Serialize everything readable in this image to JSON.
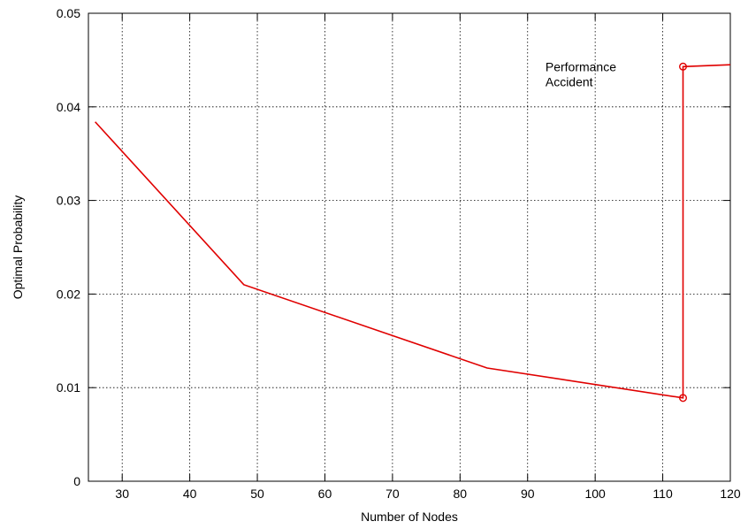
{
  "chart_data": {
    "type": "line",
    "title": "",
    "xlabel": "Number of Nodes",
    "ylabel": "Optimal Probability",
    "xlim": [
      25,
      120
    ],
    "ylim": [
      0,
      0.05
    ],
    "xticks": [
      30,
      40,
      50,
      60,
      70,
      80,
      90,
      100,
      110,
      120
    ],
    "xtick_labels": [
      "30",
      "40",
      "50",
      "60",
      "70",
      "80",
      "90",
      "100",
      "110",
      "120"
    ],
    "yticks": [
      0,
      0.01,
      0.02,
      0.03,
      0.04,
      0.05
    ],
    "ytick_labels": [
      "0",
      "0.01",
      "0.02",
      "0.03",
      "0.04",
      "0.05"
    ],
    "grid": true,
    "series": [
      {
        "color": "#e00000",
        "x": [
          26,
          48,
          84,
          113,
          113,
          120
        ],
        "y": [
          0.0384,
          0.021,
          0.0121,
          0.0089,
          0.0443,
          0.0445
        ]
      }
    ],
    "markers": [
      {
        "x": 113,
        "y": 0.0089
      },
      {
        "x": 113,
        "y": 0.0443
      }
    ],
    "annotation": {
      "line1": "Performance",
      "line2": "Accident",
      "x": 98,
      "y": 0.0443
    }
  }
}
